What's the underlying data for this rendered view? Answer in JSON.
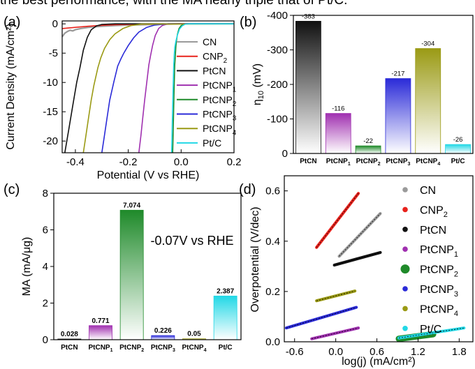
{
  "caption_fragment": "the best performance, with the MA nearly triple that of Pt/C.",
  "colors": {
    "CN": "#9a9a9a",
    "CNP2": "#e8221c",
    "PtCN": "#111111",
    "PtCNP1": "#a030b0",
    "PtCNP2": "#1f8a2a",
    "PtCNP3": "#2a2ad8",
    "PtCNP4": "#9a9a14",
    "PtC": "#22d8e6"
  },
  "chart_data": [
    {
      "panel": "(a)",
      "type": "line",
      "xlabel": "Potential (V vs RHE)",
      "ylabel": "Current Density (mA/cm²)",
      "xlim": [
        -0.45,
        0.2
      ],
      "ylim": [
        -22,
        0.5
      ],
      "xticks": [
        "-0.4",
        "-0.2",
        "0.0",
        "0.2"
      ],
      "yticks": [
        "-20",
        "-15",
        "-10",
        "-5",
        "0"
      ],
      "legend": "right",
      "series": [
        {
          "name": "CN",
          "key": "CN",
          "points": [
            [
              -0.45,
              -2.2
            ],
            [
              -0.44,
              -1.6
            ],
            [
              -0.43,
              -1.3
            ],
            [
              -0.42,
              -1.1
            ],
            [
              -0.41,
              -1.2
            ],
            [
              -0.4,
              -1.0
            ],
            [
              -0.38,
              -0.8
            ],
            [
              -0.35,
              -0.6
            ],
            [
              -0.3,
              -0.4
            ],
            [
              -0.25,
              -0.3
            ],
            [
              -0.2,
              -0.2
            ],
            [
              -0.1,
              -0.1
            ],
            [
              0.0,
              0.0
            ],
            [
              0.2,
              0.0
            ]
          ]
        },
        {
          "name": "CNP2",
          "key": "CNP2",
          "points": [
            [
              -0.45,
              -0.8
            ],
            [
              -0.4,
              -0.6
            ],
            [
              -0.35,
              -0.4
            ],
            [
              -0.3,
              -0.25
            ],
            [
              -0.25,
              -0.15
            ],
            [
              -0.2,
              -0.08
            ],
            [
              -0.1,
              -0.02
            ],
            [
              0.0,
              0.0
            ],
            [
              0.2,
              0.0
            ]
          ]
        },
        {
          "name": "PtCN",
          "key": "PtCN",
          "points": [
            [
              -0.44,
              -22
            ],
            [
              -0.425,
              -18
            ],
            [
              -0.41,
              -14
            ],
            [
              -0.395,
              -10
            ],
            [
              -0.383,
              -7.5
            ],
            [
              -0.37,
              -4.5
            ],
            [
              -0.355,
              -2.3
            ],
            [
              -0.34,
              -1.0
            ],
            [
              -0.32,
              -0.35
            ],
            [
              -0.3,
              -0.1
            ],
            [
              -0.25,
              0.0
            ],
            [
              0.2,
              0.0
            ]
          ]
        },
        {
          "name": "PtCNP1",
          "key": "PtCNP1",
          "points": [
            [
              -0.16,
              -22
            ],
            [
              -0.152,
              -19
            ],
            [
              -0.145,
              -16
            ],
            [
              -0.138,
              -13
            ],
            [
              -0.13,
              -10
            ],
            [
              -0.122,
              -7
            ],
            [
              -0.116,
              -5.5
            ],
            [
              -0.108,
              -3.7
            ],
            [
              -0.098,
              -2.0
            ],
            [
              -0.085,
              -0.8
            ],
            [
              -0.07,
              -0.25
            ],
            [
              -0.05,
              0.0
            ],
            [
              0.2,
              0.0
            ]
          ]
        },
        {
          "name": "PtCNP2",
          "key": "PtCNP2",
          "points": [
            [
              -0.032,
              -22
            ],
            [
              -0.03,
              -18
            ],
            [
              -0.028,
              -14
            ],
            [
              -0.026,
              -10
            ],
            [
              -0.024,
              -7
            ],
            [
              -0.022,
              -5.5
            ],
            [
              -0.02,
              -4.0
            ],
            [
              -0.018,
              -3.0
            ],
            [
              -0.014,
              -1.8
            ],
            [
              -0.008,
              -0.8
            ],
            [
              0.0,
              -0.3
            ],
            [
              0.01,
              -0.05
            ],
            [
              0.02,
              0.0
            ],
            [
              0.2,
              0.0
            ]
          ]
        },
        {
          "name": "PtCNP3",
          "key": "PtCNP3",
          "points": [
            [
              -0.3,
              -22
            ],
            [
              -0.29,
              -19
            ],
            [
              -0.28,
              -16
            ],
            [
              -0.27,
              -13
            ],
            [
              -0.255,
              -10
            ],
            [
              -0.24,
              -7.2
            ],
            [
              -0.228,
              -6.0
            ],
            [
              -0.217,
              -5.0
            ],
            [
              -0.2,
              -3.7
            ],
            [
              -0.18,
              -2.4
            ],
            [
              -0.16,
              -1.4
            ],
            [
              -0.13,
              -0.6
            ],
            [
              -0.1,
              -0.2
            ],
            [
              -0.05,
              0.0
            ],
            [
              0.2,
              0.0
            ]
          ]
        },
        {
          "name": "PtCNP4",
          "key": "PtCNP4",
          "points": [
            [
              -0.37,
              -22
            ],
            [
              -0.36,
              -19
            ],
            [
              -0.35,
              -16
            ],
            [
              -0.34,
              -13
            ],
            [
              -0.33,
              -10.5
            ],
            [
              -0.315,
              -7.5
            ],
            [
              -0.304,
              -5.8
            ],
            [
              -0.29,
              -4.2
            ],
            [
              -0.27,
              -2.7
            ],
            [
              -0.25,
              -1.7
            ],
            [
              -0.22,
              -0.8
            ],
            [
              -0.19,
              -0.3
            ],
            [
              -0.15,
              -0.05
            ],
            [
              0.2,
              0.0
            ]
          ]
        },
        {
          "name": "Pt/C",
          "key": "PtC",
          "points": [
            [
              -0.036,
              -22
            ],
            [
              -0.034,
              -18
            ],
            [
              -0.032,
              -14
            ],
            [
              -0.03,
              -10
            ],
            [
              -0.028,
              -7
            ],
            [
              -0.026,
              -5.2
            ],
            [
              -0.024,
              -4.0
            ],
            [
              -0.02,
              -3.0
            ],
            [
              -0.014,
              -1.9
            ],
            [
              -0.006,
              -0.9
            ],
            [
              0.004,
              -0.35
            ],
            [
              0.016,
              -0.05
            ],
            [
              0.03,
              0.0
            ],
            [
              0.2,
              0.0
            ]
          ]
        }
      ]
    },
    {
      "panel": "(b)",
      "type": "bar",
      "ylabel": "η10 (mV)",
      "categories": [
        "PtCN",
        "PtCNP1",
        "PtCNP2",
        "PtCNP3",
        "PtCNP4",
        "Pt/C"
      ],
      "keys": [
        "PtCN",
        "PtCNP1",
        "PtCNP2",
        "PtCNP3",
        "PtCNP4",
        "PtC"
      ],
      "values": [
        -383,
        -116,
        -22,
        -217,
        -304,
        -26
      ],
      "value_labels": [
        "-383",
        "-116",
        "-22",
        "-217",
        "-304",
        "-26"
      ],
      "ylim": [
        0,
        -400
      ],
      "yticks": [
        "0",
        "-100",
        "-200",
        "-300",
        "-400"
      ]
    },
    {
      "panel": "(c)",
      "type": "bar",
      "ylabel": "MA (mA/μg)",
      "categories": [
        "PtCN",
        "PtCNP1",
        "PtCNP2",
        "PtCNP3",
        "PtCNP4",
        "Pt/C"
      ],
      "keys": [
        "PtCN",
        "PtCNP1",
        "PtCNP2",
        "PtCNP3",
        "PtCNP4",
        "PtC"
      ],
      "values": [
        0.028,
        0.771,
        7.074,
        0.226,
        0.05,
        2.387
      ],
      "value_labels": [
        "0.028",
        "0.771",
        "7.074",
        "0.226",
        "0.05",
        "2.387"
      ],
      "ylim": [
        0,
        8
      ],
      "yticks": [
        "0",
        "2",
        "4",
        "6",
        "8"
      ],
      "annotation": "-0.07V vs RHE"
    },
    {
      "panel": "(d)",
      "type": "scatter",
      "xlabel": "log(j) (mA/cm²)",
      "ylabel": "Overpotential (V/dec)",
      "xlim": [
        -0.75,
        2.0
      ],
      "ylim": [
        0,
        0.66
      ],
      "xticks": [
        "-0.6",
        "0.0",
        "0.6",
        "1.2",
        "1.8"
      ],
      "yticks": [
        "0.0",
        "0.2",
        "0.4",
        "0.6"
      ],
      "legend": "right",
      "series": [
        {
          "name": "CN",
          "key": "CN",
          "segment": [
            [
              0.05,
              0.34
            ],
            [
              0.65,
              0.51
            ]
          ]
        },
        {
          "name": "CNP2",
          "key": "CNP2",
          "segment": [
            [
              -0.28,
              0.375
            ],
            [
              0.33,
              0.59
            ]
          ]
        },
        {
          "name": "PtCN",
          "key": "PtCN",
          "segment": [
            [
              -0.02,
              0.305
            ],
            [
              0.65,
              0.355
            ]
          ]
        },
        {
          "name": "PtCNP1",
          "key": "PtCNP1",
          "segment": [
            [
              -0.35,
              0.012
            ],
            [
              0.33,
              0.055
            ]
          ]
        },
        {
          "name": "PtCNP2",
          "key": "PtCNP2",
          "segment": [
            [
              0.92,
              0.012
            ],
            [
              1.42,
              0.03
            ]
          ]
        },
        {
          "name": "PtCNP3",
          "key": "PtCNP3",
          "segment": [
            [
              -0.72,
              0.055
            ],
            [
              0.3,
              0.137
            ]
          ]
        },
        {
          "name": "PtCNP4",
          "key": "PtCNP4",
          "segment": [
            [
              -0.28,
              0.163
            ],
            [
              0.28,
              0.202
            ]
          ]
        },
        {
          "name": "Pt/C",
          "key": "PtC",
          "segment": [
            [
              0.92,
              0.015
            ],
            [
              1.87,
              0.055
            ]
          ]
        }
      ]
    }
  ]
}
